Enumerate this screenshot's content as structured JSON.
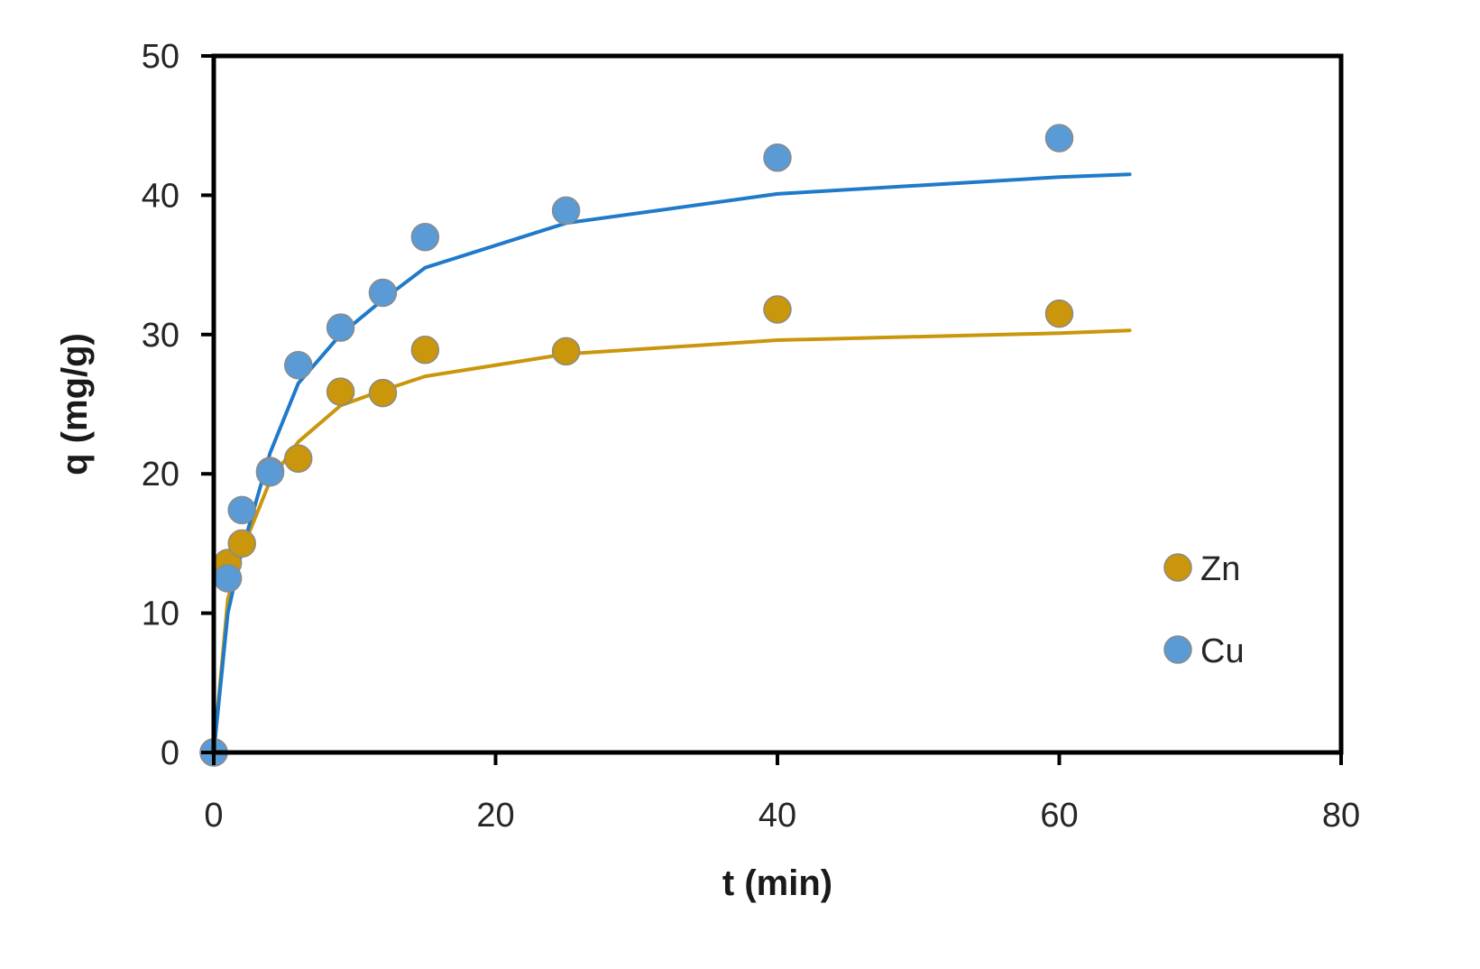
{
  "chart_data": {
    "type": "scatter",
    "xlabel": "t (min)",
    "ylabel": "q (mg/g)",
    "xlim": [
      0,
      80
    ],
    "ylim": [
      0,
      50
    ],
    "xticks": [
      0,
      20,
      40,
      60,
      80
    ],
    "yticks": [
      0,
      10,
      20,
      30,
      40,
      50
    ],
    "xtick_labels": [
      "0",
      "20",
      "40",
      "60",
      "80"
    ],
    "ytick_labels": [
      "0",
      "10",
      "20",
      "30",
      "40",
      "50"
    ],
    "grid": false,
    "legend_position": "bottom-right",
    "series": [
      {
        "name": "Zn",
        "color": "#C9960C",
        "x": [
          0,
          1,
          2,
          4,
          6,
          9,
          12,
          15,
          25,
          40,
          60
        ],
        "y": [
          0,
          13.6,
          15.0,
          20.2,
          21.1,
          25.9,
          25.8,
          28.9,
          28.8,
          31.8,
          31.5
        ],
        "fit_x": [
          0,
          1,
          2,
          4,
          6,
          9,
          12,
          15,
          25,
          40,
          60,
          65
        ],
        "fit_y": [
          0,
          11.0,
          14.5,
          19.5,
          22.3,
          24.9,
          26.0,
          27.0,
          28.6,
          29.6,
          30.1,
          30.3
        ]
      },
      {
        "name": "Cu",
        "color": "#5B9BD5",
        "line_color": "#1F7AC9",
        "x": [
          0,
          1,
          2,
          4,
          6,
          9,
          12,
          15,
          25,
          40,
          60
        ],
        "y": [
          0,
          12.5,
          17.4,
          20.1,
          27.8,
          30.5,
          33.0,
          37.0,
          38.9,
          42.7,
          44.1
        ],
        "fit_x": [
          0,
          1,
          2,
          4,
          6,
          9,
          12,
          15,
          25,
          40,
          60,
          65
        ],
        "fit_y": [
          0,
          10.0,
          14.5,
          21.5,
          26.5,
          30.0,
          32.5,
          34.8,
          38.0,
          40.1,
          41.3,
          41.5
        ]
      }
    ]
  }
}
